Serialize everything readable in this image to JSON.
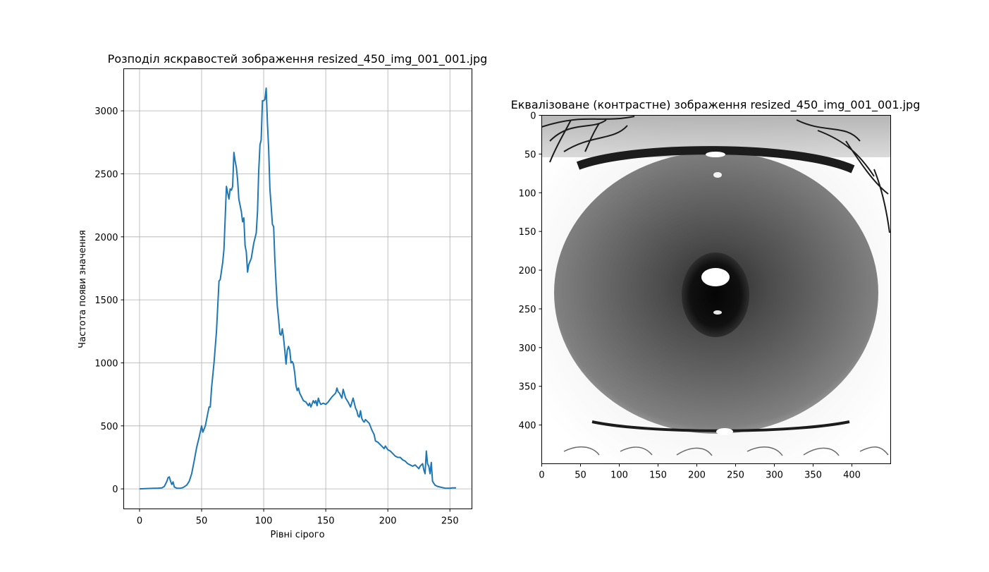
{
  "chart_data": [
    {
      "type": "line",
      "title": "Розподіл яскравостей зображення resized_450_img_001_001.jpg",
      "xlabel": "Рівні сірого",
      "ylabel": "Частота появи значення",
      "xlim": [
        -12.75,
        267.75
      ],
      "ylim": [
        -158.75,
        3333.75
      ],
      "xticks": [
        0,
        50,
        100,
        150,
        200,
        250
      ],
      "yticks": [
        0,
        500,
        1000,
        1500,
        2000,
        2500,
        3000
      ],
      "grid": true,
      "series": [
        {
          "color": "#1f77b4",
          "points": [
            [
              0,
              0
            ],
            [
              5,
              2
            ],
            [
              10,
              4
            ],
            [
              15,
              6
            ],
            [
              18,
              8
            ],
            [
              20,
              20
            ],
            [
              22,
              60
            ],
            [
              23,
              90
            ],
            [
              24,
              95
            ],
            [
              25,
              60
            ],
            [
              26,
              35
            ],
            [
              27,
              55
            ],
            [
              28,
              15
            ],
            [
              30,
              5
            ],
            [
              33,
              5
            ],
            [
              35,
              10
            ],
            [
              38,
              30
            ],
            [
              40,
              60
            ],
            [
              42,
              120
            ],
            [
              44,
              220
            ],
            [
              46,
              330
            ],
            [
              48,
              410
            ],
            [
              50,
              500
            ],
            [
              51,
              450
            ],
            [
              53,
              500
            ],
            [
              55,
              600
            ],
            [
              56,
              650
            ],
            [
              57,
              650
            ],
            [
              58,
              800
            ],
            [
              60,
              1000
            ],
            [
              62,
              1250
            ],
            [
              64,
              1650
            ],
            [
              65,
              1660
            ],
            [
              67,
              1800
            ],
            [
              68,
              1900
            ],
            [
              70,
              2400
            ],
            [
              71,
              2350
            ],
            [
              72,
              2300
            ],
            [
              73,
              2380
            ],
            [
              74,
              2370
            ],
            [
              75,
              2400
            ],
            [
              76,
              2670
            ],
            [
              77,
              2600
            ],
            [
              78,
              2550
            ],
            [
              79,
              2450
            ],
            [
              80,
              2300
            ],
            [
              82,
              2200
            ],
            [
              83,
              2120
            ],
            [
              84,
              2150
            ],
            [
              85,
              1930
            ],
            [
              86,
              1880
            ],
            [
              87,
              1720
            ],
            [
              88,
              1780
            ],
            [
              90,
              1830
            ],
            [
              92,
              1950
            ],
            [
              94,
              2030
            ],
            [
              95,
              2200
            ],
            [
              96,
              2520
            ],
            [
              97,
              2730
            ],
            [
              98,
              2770
            ],
            [
              99,
              3080
            ],
            [
              100,
              3080
            ],
            [
              101,
              3090
            ],
            [
              102,
              3180
            ],
            [
              103,
              2900
            ],
            [
              104,
              2700
            ],
            [
              105,
              2380
            ],
            [
              106,
              2250
            ],
            [
              107,
              2100
            ],
            [
              108,
              2080
            ],
            [
              109,
              1820
            ],
            [
              110,
              1620
            ],
            [
              111,
              1450
            ],
            [
              112,
              1350
            ],
            [
              113,
              1230
            ],
            [
              114,
              1220
            ],
            [
              115,
              1270
            ],
            [
              116,
              1200
            ],
            [
              117,
              1100
            ],
            [
              118,
              990
            ],
            [
              119,
              1100
            ],
            [
              120,
              1130
            ],
            [
              121,
              1100
            ],
            [
              122,
              1000
            ],
            [
              123,
              1010
            ],
            [
              124,
              990
            ],
            [
              125,
              920
            ],
            [
              126,
              820
            ],
            [
              127,
              780
            ],
            [
              128,
              800
            ],
            [
              129,
              760
            ],
            [
              130,
              740
            ],
            [
              131,
              720
            ],
            [
              132,
              700
            ],
            [
              134,
              690
            ],
            [
              136,
              660
            ],
            [
              137,
              680
            ],
            [
              138,
              650
            ],
            [
              140,
              700
            ],
            [
              141,
              680
            ],
            [
              142,
              700
            ],
            [
              143,
              660
            ],
            [
              144,
              720
            ],
            [
              145,
              690
            ],
            [
              146,
              670
            ],
            [
              148,
              680
            ],
            [
              150,
              670
            ],
            [
              152,
              690
            ],
            [
              155,
              730
            ],
            [
              158,
              760
            ],
            [
              159,
              800
            ],
            [
              160,
              770
            ],
            [
              161,
              760
            ],
            [
              163,
              720
            ],
            [
              164,
              790
            ],
            [
              166,
              720
            ],
            [
              168,
              690
            ],
            [
              170,
              650
            ],
            [
              172,
              720
            ],
            [
              174,
              640
            ],
            [
              175,
              620
            ],
            [
              176,
              580
            ],
            [
              177,
              570
            ],
            [
              178,
              620
            ],
            [
              179,
              560
            ],
            [
              180,
              540
            ],
            [
              181,
              530
            ],
            [
              182,
              550
            ],
            [
              184,
              530
            ],
            [
              185,
              520
            ],
            [
              187,
              470
            ],
            [
              189,
              430
            ],
            [
              190,
              380
            ],
            [
              192,
              370
            ],
            [
              195,
              340
            ],
            [
              197,
              320
            ],
            [
              198,
              340
            ],
            [
              200,
              310
            ],
            [
              202,
              300
            ],
            [
              204,
              280
            ],
            [
              206,
              260
            ],
            [
              208,
              250
            ],
            [
              210,
              250
            ],
            [
              212,
              230
            ],
            [
              214,
              220
            ],
            [
              216,
              200
            ],
            [
              218,
              190
            ],
            [
              220,
              180
            ],
            [
              222,
              190
            ],
            [
              224,
              170
            ],
            [
              225,
              160
            ],
            [
              226,
              180
            ],
            [
              227,
              190
            ],
            [
              228,
              200
            ],
            [
              229,
              150
            ],
            [
              230,
              120
            ],
            [
              231,
              300
            ],
            [
              232,
              200
            ],
            [
              233,
              180
            ],
            [
              234,
              120
            ],
            [
              235,
              210
            ],
            [
              236,
              60
            ],
            [
              238,
              30
            ],
            [
              240,
              20
            ],
            [
              242,
              15
            ],
            [
              244,
              10
            ],
            [
              246,
              5
            ],
            [
              248,
              5
            ],
            [
              250,
              5
            ],
            [
              252,
              8
            ],
            [
              255,
              8
            ]
          ]
        }
      ]
    },
    {
      "type": "image",
      "title": "Еквалізоване (контрастне) зображення resized_450_img_001_001.jpg",
      "xlim": [
        0,
        450
      ],
      "ylim": [
        450,
        0
      ],
      "xticks": [
        0,
        50,
        100,
        150,
        200,
        250,
        300,
        350,
        400
      ],
      "yticks": [
        0,
        50,
        100,
        150,
        200,
        250,
        300,
        350,
        400
      ]
    }
  ]
}
